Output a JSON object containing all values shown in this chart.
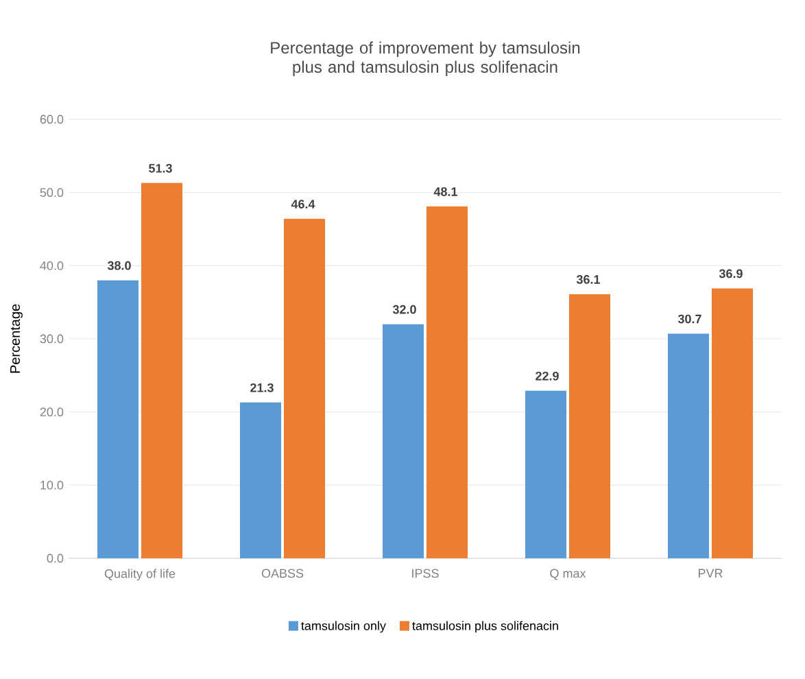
{
  "chart_data": {
    "type": "bar",
    "title": "Percentage of improvement by tamsulosin plus and tamsulosin plus solifenacin",
    "ylabel": "Percentage",
    "categories": [
      "Quality of life",
      "OABSS",
      "IPSS",
      "Q max",
      "PVR"
    ],
    "series": [
      {
        "name": "tamsulosin only",
        "color": "#5b9bd5",
        "values": [
          38.0,
          21.3,
          32.0,
          22.9,
          30.7
        ],
        "value_labels": [
          "38.0",
          "21.3",
          "32.0",
          "22.9",
          "30.7"
        ]
      },
      {
        "name": "tamsulosin plus solifenacin",
        "color": "#ed7d31",
        "values": [
          51.3,
          46.4,
          48.1,
          36.1,
          36.9
        ],
        "value_labels": [
          "51.3",
          "46.4",
          "48.1",
          "36.1",
          "36.9"
        ]
      }
    ],
    "ylim": [
      0,
      60
    ],
    "yticks": [
      {
        "value": 0,
        "label": "0.0"
      },
      {
        "value": 10,
        "label": "10.0"
      },
      {
        "value": 20,
        "label": "20.0"
      },
      {
        "value": 30,
        "label": "30.0"
      },
      {
        "value": 40,
        "label": "40.0"
      },
      {
        "value": 50,
        "label": "50.0"
      },
      {
        "value": 60,
        "label": "60.0"
      }
    ],
    "grid": "y",
    "legend": "bottom"
  }
}
